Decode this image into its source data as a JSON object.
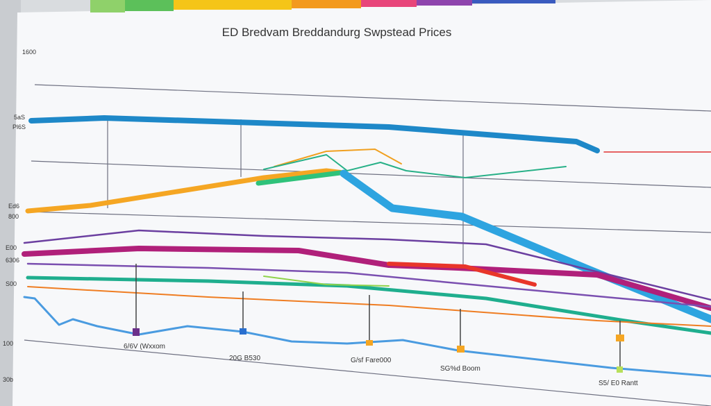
{
  "title": "ED Bredvam Breddandurg Swpstead Prices",
  "axis_labels": [
    "1600",
    "5aS",
    "Pl6S",
    "Ed6",
    "800",
    "E00",
    "6306",
    "S00",
    "100",
    "30b"
  ],
  "annotations": [
    "6/6V (Wxxom",
    "20G B530",
    "G/sf Fare000",
    "SG%d Boom",
    "S5/ E0 Rantt"
  ]
}
